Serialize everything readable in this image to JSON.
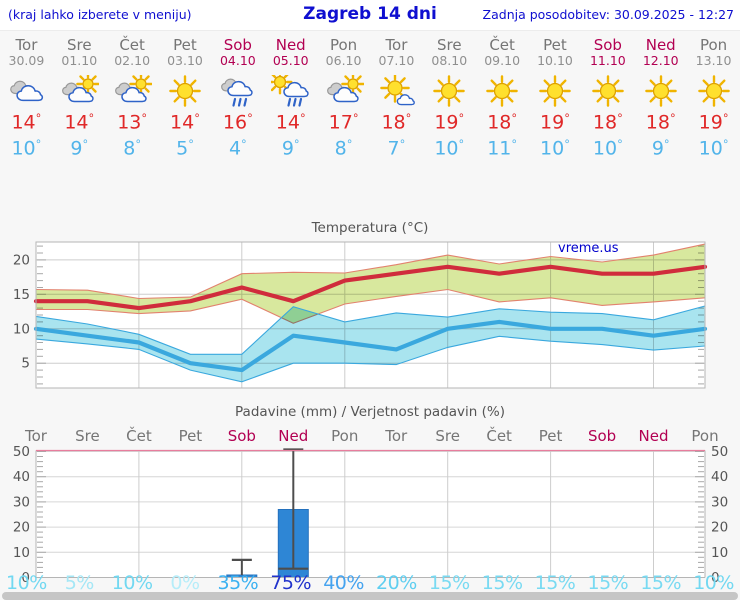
{
  "header": {
    "menu_hint": "(kraj lahko izberete v meniju)",
    "title": "Zagreb 14 dni",
    "last_update": "Zadnja posodobitev: 30.09.2025 - 12:27",
    "text_color": "#0f0fd0"
  },
  "forecast": {
    "days": [
      {
        "name": "Tor",
        "date": "30.09",
        "weekend": false,
        "icon": "cloudy",
        "tmax": 14,
        "tmin": 10
      },
      {
        "name": "Sre",
        "date": "01.10",
        "weekend": false,
        "icon": "partly-cloudy",
        "tmax": 14,
        "tmin": 9
      },
      {
        "name": "Čet",
        "date": "02.10",
        "weekend": false,
        "icon": "partly-cloudy",
        "tmax": 13,
        "tmin": 8
      },
      {
        "name": "Pet",
        "date": "03.10",
        "weekend": false,
        "icon": "sunny",
        "tmax": 14,
        "tmin": 5
      },
      {
        "name": "Sob",
        "date": "04.10",
        "weekend": true,
        "icon": "rain",
        "tmax": 16,
        "tmin": 4
      },
      {
        "name": "Ned",
        "date": "05.10",
        "weekend": true,
        "icon": "sun-rain",
        "tmax": 14,
        "tmin": 9
      },
      {
        "name": "Pon",
        "date": "06.10",
        "weekend": false,
        "icon": "partly-cloudy",
        "tmax": 17,
        "tmin": 8
      },
      {
        "name": "Tor",
        "date": "07.10",
        "weekend": false,
        "icon": "mostly-sunny",
        "tmax": 18,
        "tmin": 7
      },
      {
        "name": "Sre",
        "date": "08.10",
        "weekend": false,
        "icon": "sunny",
        "tmax": 19,
        "tmin": 10
      },
      {
        "name": "Čet",
        "date": "09.10",
        "weekend": false,
        "icon": "sunny",
        "tmax": 18,
        "tmin": 11
      },
      {
        "name": "Pet",
        "date": "10.10",
        "weekend": false,
        "icon": "sunny",
        "tmax": 19,
        "tmin": 10
      },
      {
        "name": "Sob",
        "date": "11.10",
        "weekend": true,
        "icon": "sunny",
        "tmax": 18,
        "tmin": 10
      },
      {
        "name": "Ned",
        "date": "12.10",
        "weekend": true,
        "icon": "sunny",
        "tmax": 18,
        "tmin": 9
      },
      {
        "name": "Pon",
        "date": "13.10",
        "weekend": false,
        "icon": "sunny",
        "tmax": 19,
        "tmin": 10
      }
    ],
    "colors": {
      "weekday": "#757575",
      "date": "#8f8f8f",
      "weekend": "#b20052",
      "tmax": "#e02828",
      "tmin": "#52b4ea"
    }
  },
  "chart_data": [
    {
      "type": "line",
      "title": "Temperatura (°C)",
      "watermark": "vreme.us",
      "categories": [
        "Tor",
        "Sre",
        "Čet",
        "Pet",
        "Sob",
        "Ned",
        "Pon",
        "Tor",
        "Sre",
        "Čet",
        "Pet",
        "Sob",
        "Ned",
        "Pon"
      ],
      "ylim": [
        1.4,
        22.6
      ],
      "yticks": [
        5,
        10,
        15,
        20
      ],
      "grid": true,
      "legend": "none",
      "series": [
        {
          "name": "max temperatura",
          "color": "#d02c3c",
          "values": [
            14,
            14,
            13,
            14,
            16,
            14,
            17,
            18,
            19,
            18,
            19,
            18,
            18,
            19
          ]
        },
        {
          "name": "min temperatura",
          "color": "#3aa8de",
          "values": [
            10,
            9,
            8,
            5,
            4,
            9,
            8,
            7,
            10,
            11,
            10,
            10,
            9,
            10
          ]
        }
      ],
      "bands": [
        {
          "name": "max range",
          "fill": "#d8e89e",
          "edge": "#e2826e",
          "upper": [
            15.7,
            15.6,
            14.4,
            14.6,
            18.0,
            18.2,
            18.1,
            19.3,
            20.7,
            19.4,
            20.5,
            19.7,
            20.7,
            22.3
          ],
          "lower": [
            12.8,
            12.8,
            12.2,
            12.6,
            14.3,
            10.8,
            13.6,
            14.7,
            15.7,
            13.9,
            14.5,
            13.4,
            13.9,
            14.5
          ]
        },
        {
          "name": "min range",
          "fill": "#a9e4ef",
          "edge": "#3aa8de",
          "upper": [
            11.8,
            10.7,
            9.2,
            6.3,
            6.3,
            13.2,
            11.0,
            12.3,
            11.7,
            12.9,
            12.4,
            12.2,
            11.3,
            13.3
          ],
          "lower": [
            8.5,
            7.8,
            7.0,
            4.0,
            2.3,
            5.0,
            5.0,
            4.8,
            7.3,
            8.9,
            8.2,
            7.7,
            6.9,
            7.5
          ]
        }
      ]
    },
    {
      "type": "bar",
      "title": "Padavine (mm) / Verjetnost padavin (%)",
      "categories": [
        {
          "label": "Tor",
          "weekend": false
        },
        {
          "label": "Sre",
          "weekend": false
        },
        {
          "label": "Čet",
          "weekend": false
        },
        {
          "label": "Pet",
          "weekend": false
        },
        {
          "label": "Sob",
          "weekend": true
        },
        {
          "label": "Ned",
          "weekend": true
        },
        {
          "label": "Pon",
          "weekend": false
        },
        {
          "label": "Tor",
          "weekend": false
        },
        {
          "label": "Sre",
          "weekend": false
        },
        {
          "label": "Čet",
          "weekend": false
        },
        {
          "label": "Pet",
          "weekend": false
        },
        {
          "label": "Sob",
          "weekend": true
        },
        {
          "label": "Ned",
          "weekend": true
        },
        {
          "label": "Pon",
          "weekend": false
        }
      ],
      "ylim": [
        0,
        50.4
      ],
      "yticks": [
        0,
        10,
        20,
        30,
        40,
        50
      ],
      "bar_color": "#2e86d5",
      "whisker_color": "#4d4d4d",
      "top_border_color": "#e87d9d",
      "values": [
        0,
        0,
        0,
        0,
        1,
        27,
        0,
        0,
        0,
        0,
        0,
        0,
        0,
        0
      ],
      "whiskers": [
        null,
        null,
        null,
        null,
        {
          "low": 0,
          "high": 7
        },
        {
          "low": 3.5,
          "high": 50.8
        },
        null,
        null,
        null,
        null,
        null,
        null,
        null,
        null
      ],
      "probabilities": [
        {
          "label": "10%",
          "color": "#72d8f1"
        },
        {
          "label": "5%",
          "color": "#a5e7f6"
        },
        {
          "label": "10%",
          "color": "#72d8f1"
        },
        {
          "label": "0%",
          "color": "#b6edf9"
        },
        {
          "label": "35%",
          "color": "#3bb1f1"
        },
        {
          "label": "75%",
          "color": "#2133cc"
        },
        {
          "label": "40%",
          "color": "#45a3ef"
        },
        {
          "label": "20%",
          "color": "#5fcef0"
        },
        {
          "label": "15%",
          "color": "#79daf2"
        },
        {
          "label": "15%",
          "color": "#79daf2"
        },
        {
          "label": "15%",
          "color": "#79daf2"
        },
        {
          "label": "15%",
          "color": "#79daf2"
        },
        {
          "label": "15%",
          "color": "#79daf2"
        },
        {
          "label": "10%",
          "color": "#72d8f1"
        }
      ]
    }
  ]
}
